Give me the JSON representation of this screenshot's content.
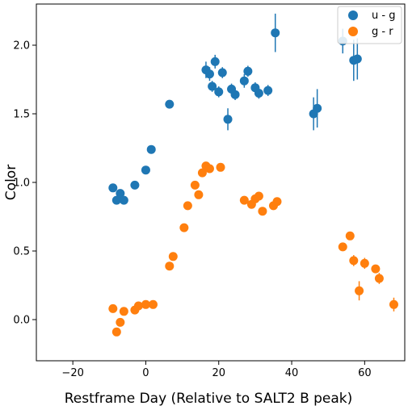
{
  "chart_data": {
    "type": "scatter",
    "xlabel": "Restframe Day (Relative to SALT2 B peak)",
    "ylabel": "Color",
    "xlim": [
      -30,
      71
    ],
    "ylim": [
      -0.3,
      2.3
    ],
    "xticks": [
      -20,
      0,
      20,
      40,
      60
    ],
    "yticks": [
      0.0,
      0.5,
      1.0,
      1.5,
      2.0
    ],
    "xtick_labels": [
      "−20",
      "0",
      "20",
      "40",
      "60"
    ],
    "ytick_labels": [
      "0.0",
      "0.5",
      "1.0",
      "1.5",
      "2.0"
    ],
    "grid": false,
    "legend_position": "top-right",
    "series": [
      {
        "name": "u - g",
        "color": "#1f77b4",
        "points": [
          {
            "x": -9.0,
            "y": 0.96,
            "err": 0.02
          },
          {
            "x": -8.0,
            "y": 0.87,
            "err": 0.02
          },
          {
            "x": -7.0,
            "y": 0.92,
            "err": 0.02
          },
          {
            "x": -6.0,
            "y": 0.87,
            "err": 0.02
          },
          {
            "x": -3.0,
            "y": 0.98,
            "err": 0.02
          },
          {
            "x": 0.0,
            "y": 1.09,
            "err": 0.02
          },
          {
            "x": 1.5,
            "y": 1.24,
            "err": 0.02
          },
          {
            "x": 6.5,
            "y": 1.57,
            "err": 0.02
          },
          {
            "x": 16.5,
            "y": 1.82,
            "err": 0.06
          },
          {
            "x": 17.5,
            "y": 1.79,
            "err": 0.05
          },
          {
            "x": 18.2,
            "y": 1.7,
            "err": 0.04
          },
          {
            "x": 19.0,
            "y": 1.88,
            "err": 0.05
          },
          {
            "x": 20.0,
            "y": 1.66,
            "err": 0.04
          },
          {
            "x": 21.0,
            "y": 1.8,
            "err": 0.04
          },
          {
            "x": 22.5,
            "y": 1.46,
            "err": 0.08
          },
          {
            "x": 23.5,
            "y": 1.68,
            "err": 0.04
          },
          {
            "x": 24.5,
            "y": 1.64,
            "err": 0.04
          },
          {
            "x": 27.0,
            "y": 1.74,
            "err": 0.05
          },
          {
            "x": 28.0,
            "y": 1.81,
            "err": 0.04
          },
          {
            "x": 30.0,
            "y": 1.69,
            "err": 0.04
          },
          {
            "x": 31.0,
            "y": 1.65,
            "err": 0.04
          },
          {
            "x": 33.5,
            "y": 1.67,
            "err": 0.04
          },
          {
            "x": 35.5,
            "y": 2.09,
            "err": 0.14
          },
          {
            "x": 46.0,
            "y": 1.5,
            "err": 0.12
          },
          {
            "x": 47.0,
            "y": 1.54,
            "err": 0.14
          },
          {
            "x": 54.0,
            "y": 2.03,
            "err": 0.09
          },
          {
            "x": 57.0,
            "y": 1.89,
            "err": 0.15
          },
          {
            "x": 58.0,
            "y": 1.9,
            "err": 0.15
          }
        ]
      },
      {
        "name": "g - r",
        "color": "#ff7f0e",
        "points": [
          {
            "x": -9.0,
            "y": 0.08,
            "err": 0.02
          },
          {
            "x": -8.0,
            "y": -0.09,
            "err": 0.02
          },
          {
            "x": -7.0,
            "y": -0.02,
            "err": 0.02
          },
          {
            "x": -6.0,
            "y": 0.06,
            "err": 0.02
          },
          {
            "x": -3.0,
            "y": 0.07,
            "err": 0.02
          },
          {
            "x": -2.0,
            "y": 0.1,
            "err": 0.02
          },
          {
            "x": 0.0,
            "y": 0.11,
            "err": 0.02
          },
          {
            "x": 2.0,
            "y": 0.11,
            "err": 0.02
          },
          {
            "x": 6.5,
            "y": 0.39,
            "err": 0.02
          },
          {
            "x": 7.5,
            "y": 0.46,
            "err": 0.02
          },
          {
            "x": 10.5,
            "y": 0.67,
            "err": 0.02
          },
          {
            "x": 11.5,
            "y": 0.83,
            "err": 0.02
          },
          {
            "x": 13.5,
            "y": 0.98,
            "err": 0.02
          },
          {
            "x": 14.5,
            "y": 0.91,
            "err": 0.02
          },
          {
            "x": 15.5,
            "y": 1.07,
            "err": 0.02
          },
          {
            "x": 16.5,
            "y": 1.12,
            "err": 0.02
          },
          {
            "x": 17.5,
            "y": 1.1,
            "err": 0.02
          },
          {
            "x": 20.5,
            "y": 1.11,
            "err": 0.02
          },
          {
            "x": 27.0,
            "y": 0.87,
            "err": 0.02
          },
          {
            "x": 29.0,
            "y": 0.84,
            "err": 0.02
          },
          {
            "x": 30.0,
            "y": 0.88,
            "err": 0.02
          },
          {
            "x": 31.0,
            "y": 0.9,
            "err": 0.02
          },
          {
            "x": 32.0,
            "y": 0.79,
            "err": 0.02
          },
          {
            "x": 35.0,
            "y": 0.83,
            "err": 0.02
          },
          {
            "x": 36.0,
            "y": 0.86,
            "err": 0.02
          },
          {
            "x": 54.0,
            "y": 0.53,
            "err": 0.02
          },
          {
            "x": 56.0,
            "y": 0.61,
            "err": 0.03
          },
          {
            "x": 57.0,
            "y": 0.43,
            "err": 0.04
          },
          {
            "x": 58.5,
            "y": 0.21,
            "err": 0.07
          },
          {
            "x": 60.0,
            "y": 0.41,
            "err": 0.04
          },
          {
            "x": 63.0,
            "y": 0.37,
            "err": 0.03
          },
          {
            "x": 64.0,
            "y": 0.3,
            "err": 0.04
          },
          {
            "x": 68.0,
            "y": 0.11,
            "err": 0.05
          }
        ]
      }
    ]
  }
}
